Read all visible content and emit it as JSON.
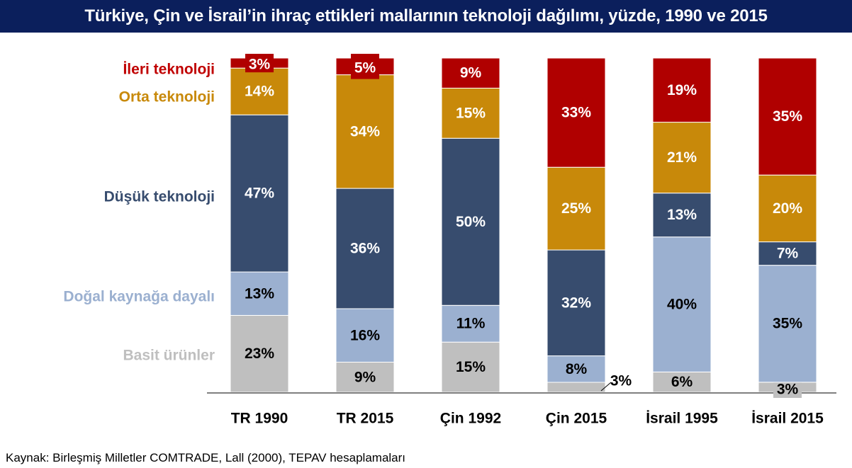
{
  "title": "Türkiye, Çin ve İsrail’in ihraç ettikleri mallarının teknoloji dağılımı, yüzde, 1990 ve 2015",
  "source": "Kaynak: Birleşmiş Milletler COMTRADE, Lall (2000), TEPAV hesaplamaları",
  "chart_data": {
    "type": "bar",
    "stacked": true,
    "percent": true,
    "categories": [
      "TR 1990",
      "TR 2015",
      "Çin 1992",
      "Çin 2015",
      "İsrail 1995",
      "İsrail 2015"
    ],
    "series": [
      {
        "name": "Basit ürünler",
        "color": "#bfbfbf",
        "text_color": "#000000",
        "values": [
          23,
          9,
          15,
          3,
          6,
          3
        ],
        "labels": [
          "23%",
          "9%",
          "15%",
          "3%",
          "6%",
          "3%"
        ]
      },
      {
        "name": "Doğal kaynağa dayalı",
        "color": "#9bb0d0",
        "text_color": "#000000",
        "values": [
          13,
          16,
          11,
          8,
          40,
          35
        ],
        "labels": [
          "13%",
          "16%",
          "11%",
          "8%",
          "40%",
          "35%"
        ]
      },
      {
        "name": "Düşük teknoloji",
        "color": "#374c6e",
        "text_color": "#ffffff",
        "values": [
          47,
          36,
          50,
          32,
          13,
          7
        ],
        "labels": [
          "47%",
          "36%",
          "50%",
          "32%",
          "13%",
          "7%"
        ]
      },
      {
        "name": "Orta teknoloji",
        "color": "#c8890a",
        "text_color": "#ffffff",
        "values": [
          14,
          34,
          15,
          25,
          21,
          20
        ],
        "labels": [
          "14%",
          "34%",
          "15%",
          "25%",
          "21%",
          "20%"
        ]
      },
      {
        "name": "İleri teknoloji",
        "color": "#b00000",
        "text_color": "#ffffff",
        "values": [
          3,
          5,
          9,
          33,
          19,
          35
        ],
        "labels": [
          "3%",
          "5%",
          "9%",
          "33%",
          "19%",
          "35%"
        ]
      }
    ],
    "legend_colors": [
      "#bfbfbf",
      "#9bb0d0",
      "#374c6e",
      "#c8890a",
      "#c00000"
    ],
    "ylim": [
      0,
      100
    ],
    "grid": false,
    "legend": "left, aligned with segments"
  }
}
